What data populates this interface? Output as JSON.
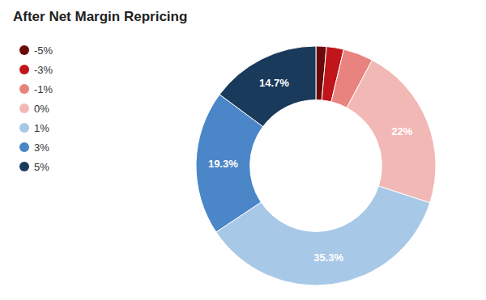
{
  "chart_data": {
    "type": "donut",
    "title": "After Net Margin Repricing",
    "categories": [
      "-5%",
      "-3%",
      "-1%",
      "0%",
      "1%",
      "3%",
      "5%"
    ],
    "values": [
      1.4,
      2.3,
      4.0,
      22.0,
      35.3,
      19.3,
      14.7
    ],
    "value_labels": [
      null,
      null,
      null,
      "22%",
      "35.3%",
      "19.3%",
      "14.7%"
    ],
    "colors": [
      "#6b0a0a",
      "#c0151a",
      "#e8837f",
      "#f2b8b5",
      "#a8c8e8",
      "#4a86c8",
      "#1a3a5c"
    ],
    "data_labels": true,
    "legend": "upper left"
  }
}
